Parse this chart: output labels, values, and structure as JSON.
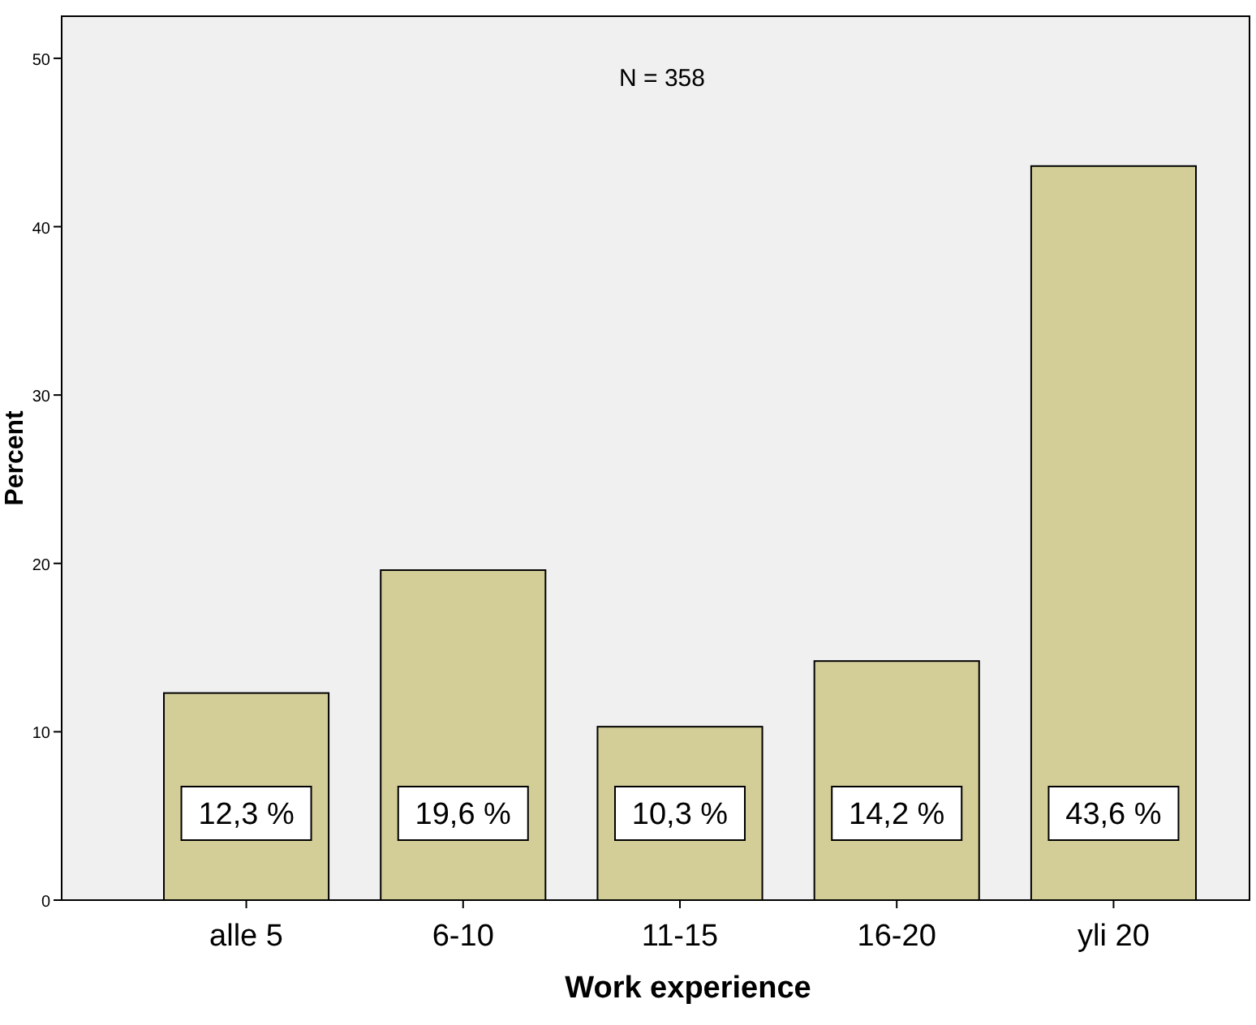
{
  "chart_data": {
    "type": "bar",
    "xlabel": "Work experience",
    "ylabel": "Percent",
    "categories": [
      "alle 5",
      "6-10",
      "11-15",
      "16-20",
      "yli 20"
    ],
    "values": [
      12.3,
      19.6,
      10.3,
      14.2,
      43.6
    ],
    "value_labels": [
      "12,3 %",
      "19,6 %",
      "10,3 %",
      "14,2 %",
      "43,6 %"
    ],
    "color": "#d3ce97",
    "ylim": [
      0,
      52.5
    ],
    "yticks": [
      0,
      10,
      20,
      30,
      40,
      50
    ],
    "annotations": [
      "N = 358"
    ],
    "grid": false
  }
}
